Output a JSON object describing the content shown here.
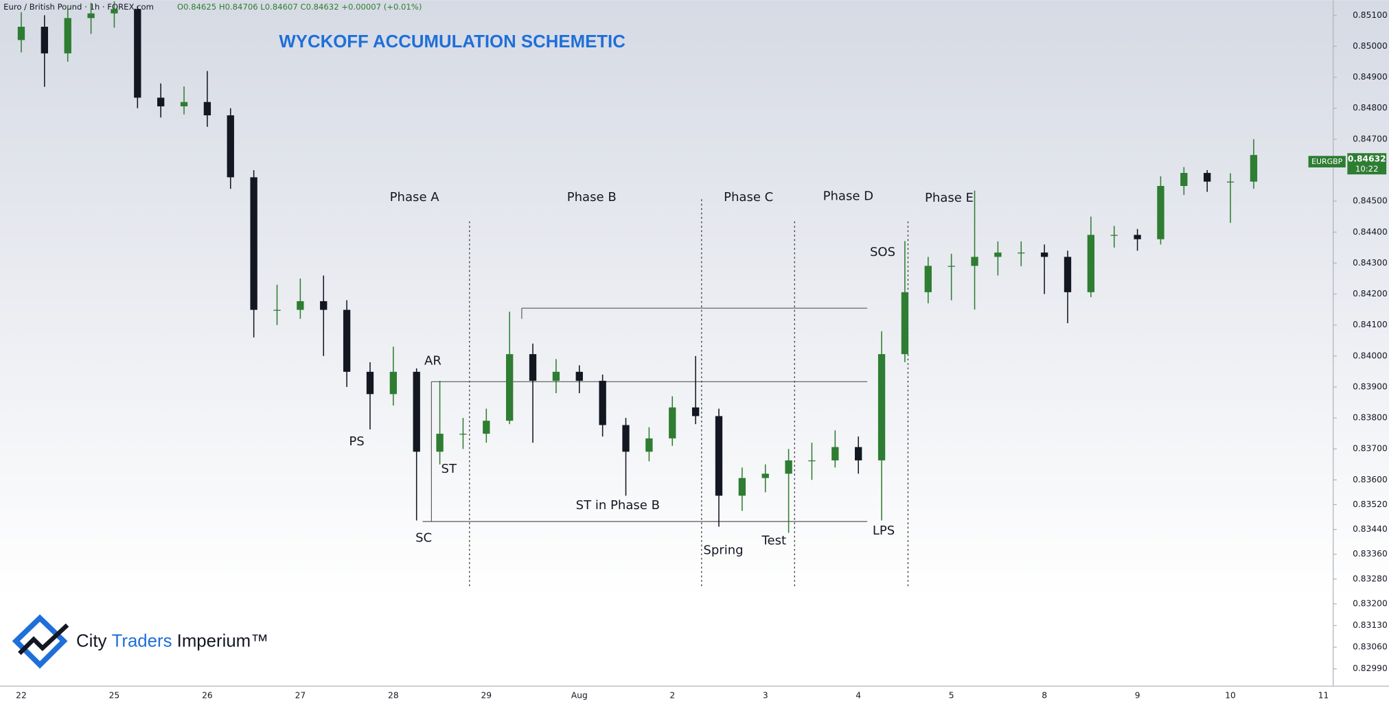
{
  "header": {
    "instrument": "Euro / British Pound · 1h · FOREX.com",
    "ohlc": "O0.84625 H0.84706 L0.84607 C0.84632 +0.00007 (+0.01%)"
  },
  "logo": {
    "brand_a": "City ",
    "brand_b": "Traders",
    "brand_c": " Imperium™"
  },
  "chart_data": {
    "type": "candlestick",
    "title": "WYCKOFF ACCUMULATION SCHEMETIC",
    "phases": [
      "Phase A",
      "Phase B",
      "Phase C",
      "Phase D",
      "Phase E"
    ],
    "annotations": [
      "PS",
      "SC",
      "AR",
      "ST",
      "ST in Phase B",
      "Spring",
      "Test",
      "LPS",
      "SOS"
    ],
    "categories": [
      "22",
      null,
      null,
      null,
      "25",
      null,
      null,
      null,
      "26",
      null,
      null,
      null,
      "27",
      null,
      null,
      null,
      "28",
      null,
      null,
      null,
      "29",
      null,
      null,
      null,
      "Aug",
      null,
      null,
      null,
      "2",
      null,
      null,
      null,
      "3",
      null,
      null,
      null,
      "4",
      null,
      null,
      null,
      "5",
      null,
      null,
      null,
      "8",
      null,
      null,
      null,
      "9",
      null,
      null,
      null,
      "10",
      null,
      null,
      null,
      "11"
    ],
    "open": [
      0.8502,
      0.85063,
      0.84977,
      0.85091,
      0.85106,
      0.8512,
      0.84834,
      0.84806,
      0.8482,
      0.84777,
      0.84577,
      0.84149,
      0.84149,
      0.84177,
      0.84149,
      0.83949,
      0.83877,
      0.83949,
      0.83691,
      0.83749,
      0.83749,
      0.83791,
      0.84006,
      0.8392,
      0.83949,
      0.8392,
      0.83777,
      0.83691,
      0.83734,
      0.83834,
      0.83806,
      0.83549,
      0.83606,
      0.8362,
      0.83663,
      0.83663,
      0.83706,
      0.83663,
      0.84006,
      0.84206,
      0.84291,
      0.84291,
      0.8432,
      0.84334,
      0.84334,
      0.8432,
      0.84206,
      0.84391,
      0.84391,
      0.84377,
      0.84549,
      0.84591,
      0.84563,
      0.84563,
      null,
      null,
      null
    ],
    "high": [
      0.8511,
      0.851,
      0.8513,
      0.8514,
      0.85145,
      0.8513,
      0.8488,
      0.8487,
      0.8492,
      0.848,
      0.846,
      0.8423,
      0.8425,
      0.8426,
      0.8418,
      0.8398,
      0.8403,
      0.8396,
      0.8392,
      0.838,
      0.8383,
      0.84143,
      0.8404,
      0.8399,
      0.8397,
      0.8394,
      0.838,
      0.8377,
      0.8387,
      0.84,
      0.8383,
      0.8364,
      0.8365,
      0.837,
      0.8372,
      0.8376,
      0.8374,
      0.8408,
      0.84371,
      0.8432,
      0.8433,
      0.84534,
      0.8437,
      0.8437,
      0.8436,
      0.8434,
      0.8445,
      0.8442,
      0.8441,
      0.8458,
      0.8461,
      0.846,
      0.8459,
      0.847,
      null,
      null,
      null
    ],
    "low": [
      0.8498,
      0.84869,
      0.8495,
      0.8504,
      0.8506,
      0.848,
      0.8477,
      0.8478,
      0.8474,
      0.8454,
      0.8406,
      0.841,
      0.8412,
      0.84,
      0.839,
      0.83763,
      0.8384,
      0.83469,
      0.8365,
      0.837,
      0.8372,
      0.8378,
      0.8372,
      0.8388,
      0.8388,
      0.8374,
      0.83549,
      0.8366,
      0.8371,
      0.8378,
      0.83449,
      0.835,
      0.8356,
      0.83429,
      0.836,
      0.8364,
      0.8362,
      0.83469,
      0.8398,
      0.8417,
      0.8418,
      0.8415,
      0.8426,
      0.8429,
      0.842,
      0.84106,
      0.8419,
      0.8435,
      0.8434,
      0.8436,
      0.8452,
      0.8453,
      0.8443,
      0.8454,
      null,
      null,
      null
    ],
    "close": [
      0.85063,
      0.84977,
      0.85091,
      0.85106,
      0.8512,
      0.84834,
      0.84806,
      0.8482,
      0.84777,
      0.84577,
      0.84149,
      0.84149,
      0.84177,
      0.84149,
      0.83949,
      0.83877,
      0.83949,
      0.83691,
      0.83749,
      0.83749,
      0.83791,
      0.84006,
      0.8392,
      0.83949,
      0.8392,
      0.83777,
      0.83691,
      0.83734,
      0.83834,
      0.83806,
      0.83549,
      0.83606,
      0.8362,
      0.83663,
      0.83663,
      0.83706,
      0.83663,
      0.84006,
      0.84206,
      0.84291,
      0.84291,
      0.8432,
      0.84334,
      0.84334,
      0.8432,
      0.84206,
      0.84391,
      0.84391,
      0.84377,
      0.84549,
      0.84591,
      0.84563,
      0.84563,
      0.84649,
      null,
      null,
      null
    ],
    "up_color": "#2e7d32",
    "down_color": "#131722",
    "ylim": [
      0.82934,
      0.85149
    ],
    "yticks": [
      {
        "value": 0.851,
        "label": "0.85100"
      },
      {
        "value": 0.85,
        "label": "0.85000"
      },
      {
        "value": 0.849,
        "label": "0.84900"
      },
      {
        "value": 0.848,
        "label": "0.84800"
      },
      {
        "value": 0.847,
        "label": "0.84700"
      },
      {
        "value": 0.845,
        "label": "0.84500"
      },
      {
        "value": 0.844,
        "label": "0.84400"
      },
      {
        "value": 0.843,
        "label": "0.84300"
      },
      {
        "value": 0.842,
        "label": "0.84200"
      },
      {
        "value": 0.841,
        "label": "0.84100"
      },
      {
        "value": 0.84,
        "label": "0.84000"
      },
      {
        "value": 0.839,
        "label": "0.83900"
      },
      {
        "value": 0.838,
        "label": "0.83800"
      },
      {
        "value": 0.837,
        "label": "0.83700"
      },
      {
        "value": 0.836,
        "label": "0.83600"
      },
      {
        "value": 0.8352,
        "label": "0.83520"
      },
      {
        "value": 0.8344,
        "label": "0.83440"
      },
      {
        "value": 0.8336,
        "label": "0.83360"
      },
      {
        "value": 0.8328,
        "label": "0.83280"
      },
      {
        "value": 0.832,
        "label": "0.83200"
      },
      {
        "value": 0.8313,
        "label": "0.83130"
      },
      {
        "value": 0.8306,
        "label": "0.83060"
      },
      {
        "value": 0.8299,
        "label": "0.82990"
      }
    ],
    "grid": false,
    "symbol": "EURGBP",
    "last_price": {
      "value": 0.84632,
      "label": "0.84632"
    },
    "countdown": "10:22"
  }
}
